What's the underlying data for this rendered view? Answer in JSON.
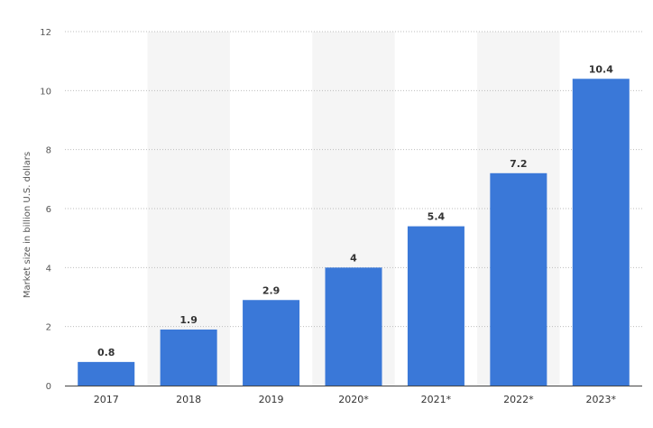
{
  "chart_data": {
    "type": "bar",
    "categories": [
      "2017",
      "2018",
      "2019",
      "2020*",
      "2021*",
      "2022*",
      "2023*"
    ],
    "values": [
      0.8,
      1.9,
      2.9,
      4,
      5.4,
      7.2,
      10.4
    ],
    "value_labels": [
      "0.8",
      "1.9",
      "2.9",
      "4",
      "5.4",
      "7.2",
      "10.4"
    ],
    "ylabel": "Market size in billion U.S. dollars",
    "xlabel": "",
    "ylim": [
      0,
      12
    ],
    "yticks": [
      "0",
      "2",
      "4",
      "6",
      "8",
      "10",
      "12"
    ],
    "grid": true,
    "bar_color": "#3a78d8",
    "band_color": "#f5f5f5"
  }
}
